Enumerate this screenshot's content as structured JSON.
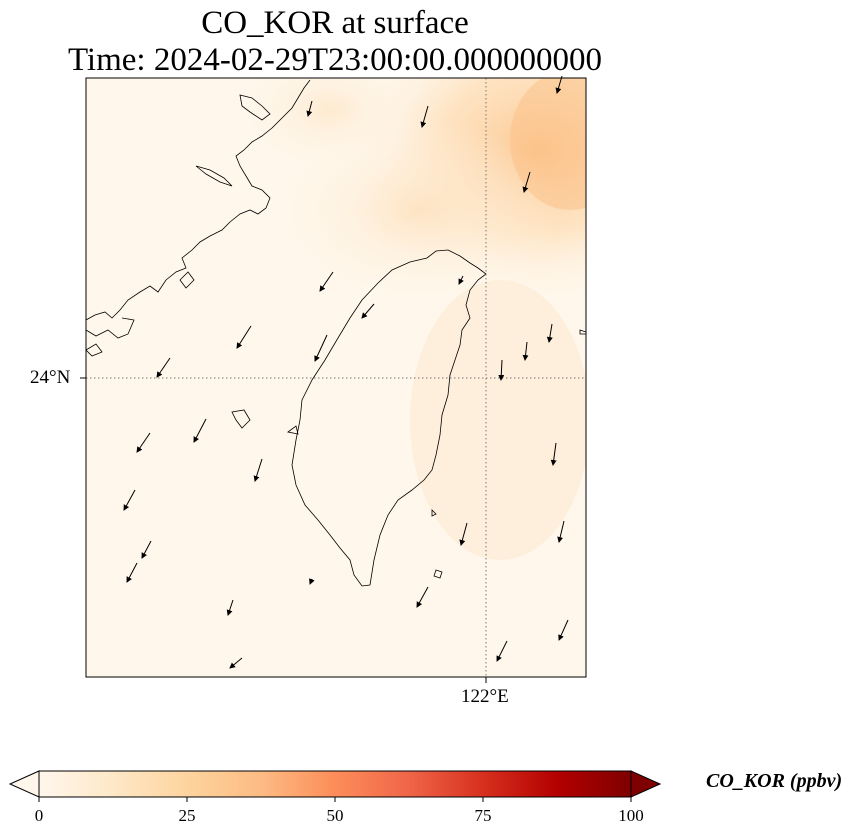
{
  "title": {
    "line1": "CO_KOR at surface",
    "line2": "Time: 2024-02-29T23:00:00.000000000"
  },
  "map": {
    "lat_tick_label": "24°N",
    "lon_tick_label": "122°E",
    "colormap": "OrRd",
    "coastline_color": "#000000",
    "gridline_style": "dotted"
  },
  "colorbar": {
    "label": "CO_KOR (ppbv)",
    "min": 0,
    "max": 100,
    "extend": "both",
    "ticks": [
      "0",
      "25",
      "50",
      "75",
      "100"
    ],
    "colors": [
      "#fff7ec",
      "#fee8c8",
      "#fdd49e",
      "#fdbb84",
      "#fc8d59",
      "#ef6548",
      "#d7301f",
      "#b30000",
      "#7f0000"
    ]
  },
  "field": {
    "background_color": "#fef4e6",
    "plume_color": "#fdd6a4",
    "plume_peak_color": "#fcc38a"
  }
}
